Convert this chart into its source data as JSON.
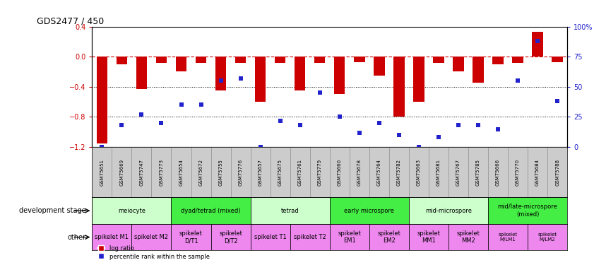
{
  "title": "GDS2477 / 450",
  "samples": [
    "GSM75651",
    "GSM75669",
    "GSM75747",
    "GSM75773",
    "GSM75654",
    "GSM75672",
    "GSM75755",
    "GSM75776",
    "GSM75657",
    "GSM75675",
    "GSM75761",
    "GSM75779",
    "GSM75660",
    "GSM75678",
    "GSM75764",
    "GSM75782",
    "GSM75663",
    "GSM75681",
    "GSM75767",
    "GSM75785",
    "GSM75666",
    "GSM75770",
    "GSM75684",
    "GSM75788"
  ],
  "log_ratio": [
    -1.15,
    -0.1,
    -0.43,
    -0.08,
    -0.2,
    -0.08,
    -0.45,
    -0.08,
    -0.6,
    -0.08,
    -0.45,
    -0.08,
    -0.5,
    -0.07,
    -0.25,
    -0.8,
    -0.6,
    -0.08,
    -0.2,
    -0.35,
    -0.1,
    -0.08,
    0.33,
    -0.07
  ],
  "percentile": [
    0,
    18,
    27,
    20,
    35,
    35,
    55,
    57,
    0,
    22,
    18,
    45,
    25,
    12,
    20,
    10,
    0,
    8,
    18,
    18,
    15,
    55,
    88,
    38
  ],
  "ylim_left": [
    -1.2,
    0.4
  ],
  "ylim_right": [
    0,
    100
  ],
  "yticks_left": [
    -1.2,
    -0.8,
    -0.4,
    0.0,
    0.4
  ],
  "yticks_right": [
    0,
    25,
    50,
    75,
    100
  ],
  "hline_zero": 0.0,
  "hline_dots": [
    -0.4,
    -0.8
  ],
  "bar_color": "#cc0000",
  "dot_color": "#2222cc",
  "dev_stages": [
    {
      "label": "meiocyte",
      "start": 0,
      "end": 3,
      "color": "#ccffcc"
    },
    {
      "label": "dyad/tetrad (mixed)",
      "start": 4,
      "end": 7,
      "color": "#44ee44"
    },
    {
      "label": "tetrad",
      "start": 8,
      "end": 11,
      "color": "#ccffcc"
    },
    {
      "label": "early microspore",
      "start": 12,
      "end": 15,
      "color": "#44ee44"
    },
    {
      "label": "mid-microspore",
      "start": 16,
      "end": 19,
      "color": "#ccffcc"
    },
    {
      "label": "mid/late-microspore\n(mixed)",
      "start": 20,
      "end": 23,
      "color": "#44ee44"
    }
  ],
  "other_stages": [
    {
      "label": "spikelet M1",
      "start": 0,
      "end": 1,
      "color": "#ee88ee"
    },
    {
      "label": "spikelet M2",
      "start": 2,
      "end": 3,
      "color": "#ee88ee"
    },
    {
      "label": "spikelet\nD/T1",
      "start": 4,
      "end": 5,
      "color": "#ee88ee"
    },
    {
      "label": "spikelet\nD/T2",
      "start": 6,
      "end": 7,
      "color": "#ee88ee"
    },
    {
      "label": "spikelet T1",
      "start": 8,
      "end": 9,
      "color": "#ee88ee"
    },
    {
      "label": "spikelet T2",
      "start": 10,
      "end": 11,
      "color": "#ee88ee"
    },
    {
      "label": "spikelet\nEM1",
      "start": 12,
      "end": 13,
      "color": "#ee88ee"
    },
    {
      "label": "spikelet\nEM2",
      "start": 14,
      "end": 15,
      "color": "#ee88ee"
    },
    {
      "label": "spikelet\nMM1",
      "start": 16,
      "end": 17,
      "color": "#ee88ee"
    },
    {
      "label": "spikelet\nMM2",
      "start": 18,
      "end": 19,
      "color": "#ee88ee"
    },
    {
      "label": "spikelet\nM/LM1",
      "start": 20,
      "end": 21,
      "color": "#ee88ee"
    },
    {
      "label": "spikelet\nM/LM2",
      "start": 22,
      "end": 23,
      "color": "#ee88ee"
    }
  ],
  "dev_stage_label": "development stage",
  "other_label": "other",
  "legend_bar": "log ratio",
  "legend_dot": "percentile rank within the sample",
  "bar_width": 0.55,
  "bar_color_left": "#cc0000",
  "bar_color_right": "#2222cc",
  "sample_cell_color": "#cccccc",
  "sample_cell_edge": "#888888"
}
